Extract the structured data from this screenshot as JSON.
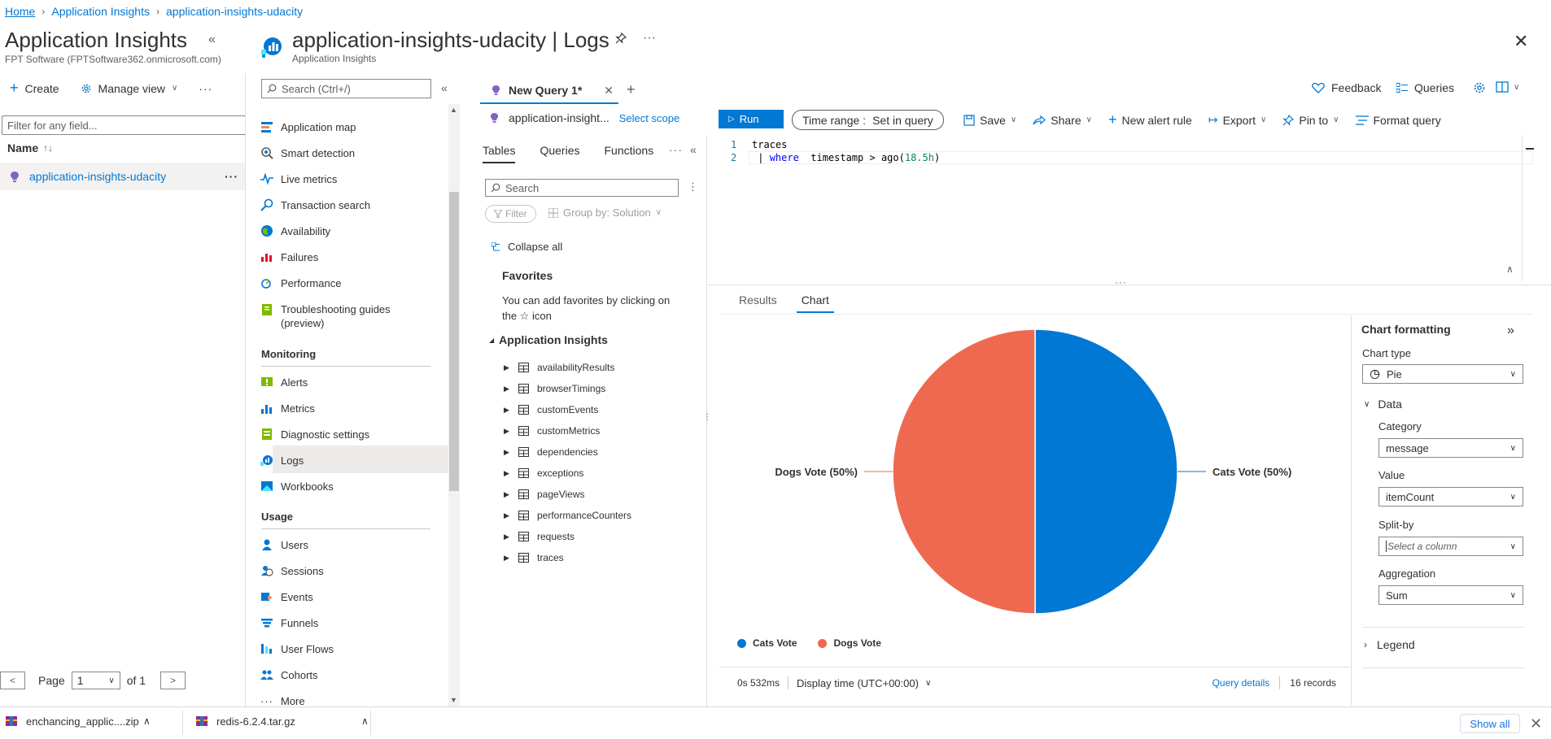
{
  "breadcrumb": [
    "Home",
    "Application Insights",
    "application-insights-udacity"
  ],
  "left": {
    "title": "Application Insights",
    "subtitle": "FPT Software (FPTSoftware362.onmicrosoft.com)",
    "create": "Create",
    "manage_view": "Manage view",
    "filter_placeholder": "Filter for any field...",
    "name_header": "Name",
    "resource": "application-insights-udacity",
    "page_label": "Page",
    "page_value": "1",
    "page_of": "of 1"
  },
  "resource": {
    "title": "application-insights-udacity | Logs",
    "subtitle": "Application Insights"
  },
  "nav": {
    "search_placeholder": "Search (Ctrl+/)",
    "items_top": [
      {
        "label": "Application map",
        "icon": "app-map-icon"
      },
      {
        "label": "Smart detection",
        "icon": "smart-detection-icon"
      },
      {
        "label": "Live metrics",
        "icon": "live-metrics-icon"
      },
      {
        "label": "Transaction search",
        "icon": "transaction-search-icon"
      },
      {
        "label": "Availability",
        "icon": "availability-icon"
      },
      {
        "label": "Failures",
        "icon": "failures-icon"
      },
      {
        "label": "Performance",
        "icon": "performance-icon"
      }
    ],
    "troubleshooting_1": "Troubleshooting guides",
    "troubleshooting_2": "(preview)",
    "monitoring": "Monitoring",
    "items_monitoring": [
      {
        "label": "Alerts"
      },
      {
        "label": "Metrics"
      },
      {
        "label": "Diagnostic settings"
      },
      {
        "label": "Logs"
      },
      {
        "label": "Workbooks"
      }
    ],
    "usage": "Usage",
    "items_usage": [
      {
        "label": "Users"
      },
      {
        "label": "Sessions"
      },
      {
        "label": "Events"
      },
      {
        "label": "Funnels"
      },
      {
        "label": "User Flows"
      },
      {
        "label": "Cohorts"
      },
      {
        "label": "More"
      }
    ]
  },
  "query_tab": "New Query 1*",
  "feedback": "Feedback",
  "queries": "Queries",
  "toolbar": {
    "scope": "application-insight...",
    "select_scope": "Select scope",
    "run": "Run",
    "time_range_label": "Time range :",
    "time_range_value": "Set in query",
    "save": "Save",
    "share": "Share",
    "new_alert": "New alert rule",
    "export": "Export",
    "pin_to": "Pin to",
    "format_query": "Format query"
  },
  "schema": {
    "tabs": [
      "Tables",
      "Queries",
      "Functions"
    ],
    "search_placeholder": "Search",
    "filter": "Filter",
    "group_by": "Group by: Solution",
    "collapse_all": "Collapse all",
    "favorites_title": "Favorites",
    "favorites_text": "You can add favorites by clicking on the ☆ icon",
    "group": "Application Insights",
    "tables": [
      "availabilityResults",
      "browserTimings",
      "customEvents",
      "customMetrics",
      "dependencies",
      "exceptions",
      "pageViews",
      "performanceCounters",
      "requests",
      "traces"
    ]
  },
  "editor": {
    "line1_no": "1",
    "line2_no": "2",
    "line1": "traces",
    "line2_pipe": " | ",
    "line2_kw": "where",
    "line2_mid": "  timestamp > ago(",
    "line2_num": "18.5h",
    "line2_end": ")"
  },
  "results": {
    "tab_results": "Results",
    "tab_chart": "Chart",
    "duration": "0s 532ms",
    "display_time": "Display time (UTC+00:00)",
    "query_details": "Query details",
    "records": "16 records"
  },
  "chart_data": {
    "type": "pie",
    "categories": [
      "Cats Vote",
      "Dogs Vote"
    ],
    "values": [
      50,
      50
    ],
    "slice_labels": [
      "Cats Vote (50%)",
      "Dogs Vote (50%)"
    ],
    "colors": [
      "#0078d4",
      "#ef6950"
    ],
    "legend_position": "bottom-left"
  },
  "formatting": {
    "title": "Chart formatting",
    "chart_type_label": "Chart type",
    "chart_type": "Pie",
    "data_label": "Data",
    "category_label": "Category",
    "category": "message",
    "value_label": "Value",
    "value": "itemCount",
    "split_label": "Split-by",
    "split_placeholder": "Select a column",
    "aggregation_label": "Aggregation",
    "aggregation": "Sum",
    "legend_label": "Legend"
  },
  "downloads": {
    "file1": "enchancing_applic....zip",
    "file2": "redis-6.2.4.tar.gz",
    "show_all": "Show all"
  }
}
